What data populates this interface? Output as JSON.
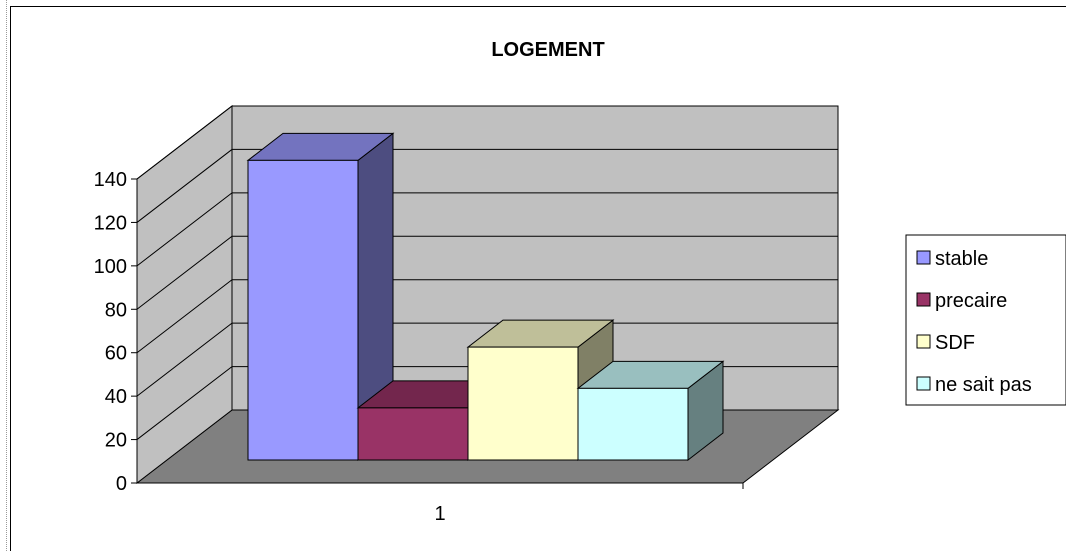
{
  "chart_data": {
    "type": "bar",
    "title": "LOGEMENT",
    "categories": [
      "1"
    ],
    "series": [
      {
        "name": "stable",
        "values": [
          138
        ],
        "color": "#9999ff"
      },
      {
        "name": "precaire",
        "values": [
          24
        ],
        "color": "#993366"
      },
      {
        "name": "SDF",
        "values": [
          52
        ],
        "color": "#ffffcc"
      },
      {
        "name": "ne sait pas",
        "values": [
          33
        ],
        "color": "#ccffff"
      }
    ],
    "yticks": [
      "0",
      "20",
      "40",
      "60",
      "80",
      "100",
      "120",
      "140"
    ],
    "ylim": [
      0,
      140
    ],
    "grid": true,
    "legend": "right",
    "colors": {
      "wall": "#c0c0c0",
      "floor": "#808080"
    }
  }
}
